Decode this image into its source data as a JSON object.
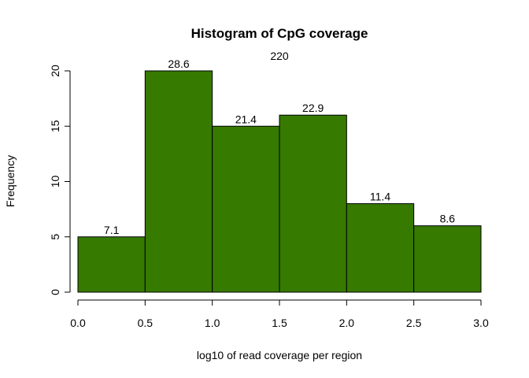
{
  "chart_data": {
    "type": "bar",
    "title": "Histogram of CpG coverage",
    "subtitle": "220",
    "xlabel": "log10 of read coverage per region",
    "ylabel": "Frequency",
    "bins": [
      {
        "x0": 0.0,
        "x1": 0.5,
        "count": 5,
        "label": "7.1"
      },
      {
        "x0": 0.5,
        "x1": 1.0,
        "count": 20,
        "label": "28.6"
      },
      {
        "x0": 1.0,
        "x1": 1.5,
        "count": 15,
        "label": "21.4"
      },
      {
        "x0": 1.5,
        "x1": 2.0,
        "count": 16,
        "label": "22.9"
      },
      {
        "x0": 2.0,
        "x1": 2.5,
        "count": 8,
        "label": "11.4"
      },
      {
        "x0": 2.5,
        "x1": 3.0,
        "count": 6,
        "label": "8.6"
      }
    ],
    "x_ticks": [
      "0.0",
      "0.5",
      "1.0",
      "1.5",
      "2.0",
      "2.5",
      "3.0"
    ],
    "y_ticks": [
      "0",
      "5",
      "10",
      "15",
      "20"
    ],
    "xlim": [
      0,
      3
    ],
    "ylim": [
      0,
      20
    ],
    "bar_color": "#367a00",
    "grid": false,
    "legend": "none"
  }
}
